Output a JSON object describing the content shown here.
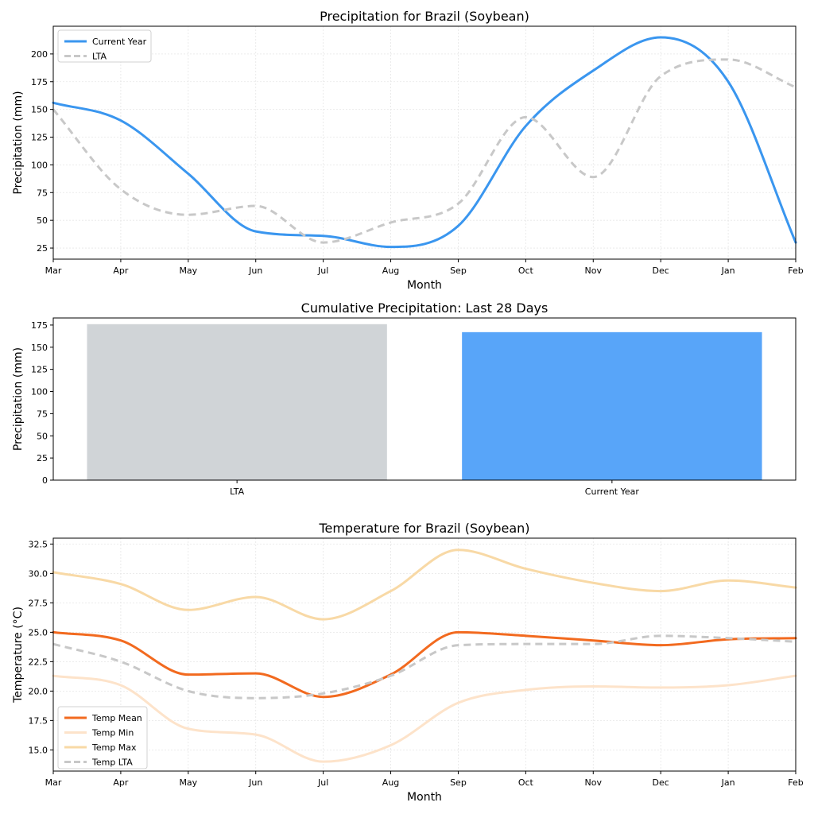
{
  "chart_data": [
    {
      "type": "line",
      "title": "Precipitation for Brazil (Soybean)",
      "xlabel": "Month",
      "ylabel": "Precipitation (mm)",
      "categories": [
        "Mar",
        "Apr",
        "May",
        "Jun",
        "Jul",
        "Aug",
        "Sep",
        "Oct",
        "Nov",
        "Dec",
        "Jan",
        "Feb"
      ],
      "ylim": [
        15,
        225
      ],
      "yticks": [
        25,
        50,
        75,
        100,
        125,
        150,
        175,
        200
      ],
      "grid": true,
      "legend_loc": "upper-left",
      "series": [
        {
          "name": "Current Year",
          "color": "#3a96ef",
          "style": "solid",
          "values": [
            156,
            140,
            92,
            40,
            36,
            26,
            45,
            135,
            185,
            215,
            175,
            30
          ]
        },
        {
          "name": "LTA",
          "color": "#c8c8c8",
          "style": "dashed",
          "values": [
            150,
            78,
            55,
            63,
            30,
            48,
            65,
            143,
            89,
            180,
            195,
            170
          ]
        }
      ]
    },
    {
      "type": "bar",
      "title": "Cumulative Precipitation: Last 28 Days",
      "ylabel": "Precipitation (mm)",
      "categories": [
        "LTA",
        "Current Year"
      ],
      "values": [
        176,
        167
      ],
      "colors": [
        "#d0d4d7",
        "#58a5f9"
      ],
      "ylim": [
        0,
        183
      ],
      "yticks": [
        0,
        25,
        50,
        75,
        100,
        125,
        150,
        175
      ]
    },
    {
      "type": "line",
      "title": "Temperature for Brazil (Soybean)",
      "xlabel": "Month",
      "ylabel": "Temperature (°C)",
      "categories": [
        "Mar",
        "Apr",
        "May",
        "Jun",
        "Jul",
        "Aug",
        "Sep",
        "Oct",
        "Nov",
        "Dec",
        "Jan",
        "Feb"
      ],
      "ylim": [
        13.2,
        33.0
      ],
      "yticks": [
        15.0,
        17.5,
        20.0,
        22.5,
        25.0,
        27.5,
        30.0,
        32.5
      ],
      "grid": true,
      "legend_loc": "lower-left",
      "series": [
        {
          "name": "Temp Mean",
          "color": "#f26a1f",
          "style": "solid",
          "width": 3,
          "values": [
            25.0,
            24.3,
            21.4,
            21.5,
            19.5,
            21.4,
            25.0,
            24.7,
            24.3,
            23.9,
            24.4,
            24.5
          ]
        },
        {
          "name": "Temp Min",
          "color": "#fde3ca",
          "style": "solid",
          "width": 3,
          "values": [
            21.3,
            20.5,
            16.8,
            16.3,
            14.0,
            15.4,
            19.0,
            20.1,
            20.4,
            20.3,
            20.5,
            21.3
          ]
        },
        {
          "name": "Temp Max",
          "color": "#f8d9a6",
          "style": "solid",
          "width": 3,
          "values": [
            30.1,
            29.1,
            26.9,
            28.0,
            26.1,
            28.5,
            32.0,
            30.4,
            29.2,
            28.5,
            29.4,
            28.8
          ]
        },
        {
          "name": "Temp LTA",
          "color": "#c8c8c8",
          "style": "dashed",
          "width": 3,
          "values": [
            24.0,
            22.5,
            20.0,
            19.4,
            19.8,
            21.3,
            23.9,
            24.0,
            24.0,
            24.7,
            24.5,
            24.2
          ]
        }
      ]
    }
  ]
}
